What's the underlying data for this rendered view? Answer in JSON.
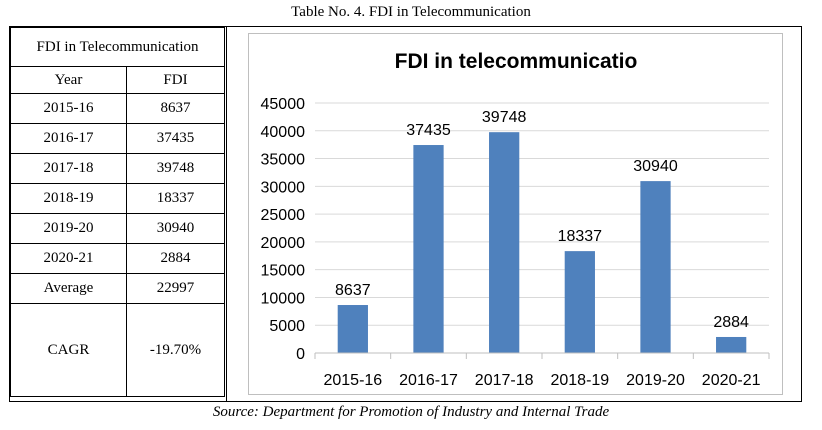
{
  "caption": "Table No. 4. FDI in Telecommunication",
  "source": "Source: Department for Promotion of Industry and Internal Trade",
  "table": {
    "title": "FDI in Telecommunication",
    "headers": [
      "Year",
      "FDI"
    ],
    "rows": [
      {
        "year": "2015-16",
        "fdi": "8637"
      },
      {
        "year": "2016-17",
        "fdi": "37435"
      },
      {
        "year": "2017-18",
        "fdi": "39748"
      },
      {
        "year": "2018-19",
        "fdi": "18337"
      },
      {
        "year": "2019-20",
        "fdi": "30940"
      },
      {
        "year": "2020-21",
        "fdi": "2884"
      },
      {
        "year": "Average",
        "fdi": "22997"
      }
    ],
    "cagr_label": "CAGR",
    "cagr_value": "-19.70%"
  },
  "chart_data": {
    "type": "bar",
    "title": "FDI in telecommunicatio",
    "categories": [
      "2015-16",
      "2016-17",
      "2017-18",
      "2018-19",
      "2019-20",
      "2020-21"
    ],
    "values": [
      8637,
      37435,
      39748,
      18337,
      30940,
      2884
    ],
    "ylim": [
      0,
      45000
    ],
    "yticks": [
      0,
      5000,
      10000,
      15000,
      20000,
      25000,
      30000,
      35000,
      40000,
      45000
    ],
    "grid": true,
    "legend": "none",
    "bar_color": "#4f81bd"
  }
}
